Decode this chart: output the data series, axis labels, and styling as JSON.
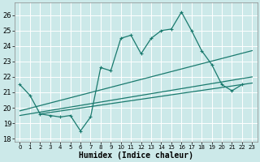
{
  "xlabel": "Humidex (Indice chaleur)",
  "background_color": "#cce9e9",
  "grid_color": "#b0d4d4",
  "line_color": "#1a7a6e",
  "xlim": [
    -0.5,
    23.5
  ],
  "ylim": [
    17.8,
    26.8
  ],
  "yticks": [
    18,
    19,
    20,
    21,
    22,
    23,
    24,
    25,
    26
  ],
  "xticks": [
    0,
    1,
    2,
    3,
    4,
    5,
    6,
    7,
    8,
    9,
    10,
    11,
    12,
    13,
    14,
    15,
    16,
    17,
    18,
    19,
    20,
    21,
    22,
    23
  ],
  "zigzag_x": [
    0,
    1,
    2,
    3,
    4,
    5,
    6,
    7,
    8,
    9,
    10,
    11,
    12,
    13,
    14,
    15,
    16,
    17,
    18,
    19,
    20,
    21,
    22
  ],
  "zigzag_y": [
    21.5,
    20.8,
    19.6,
    19.5,
    19.4,
    19.5,
    18.5,
    19.4,
    22.6,
    22.4,
    24.5,
    24.7,
    23.5,
    24.5,
    25.0,
    25.1,
    26.2,
    25.0,
    23.7,
    22.8,
    21.5,
    21.1,
    21.5
  ],
  "line_a_x0": 0,
  "line_a_y0": 19.8,
  "line_a_x1": 23,
  "line_a_y1": 23.7,
  "line_b_x0": 0,
  "line_b_y0": 19.5,
  "line_b_x1": 23,
  "line_b_y1": 22.0,
  "line_c_x0": 2,
  "line_c_y0": 19.6,
  "line_c_x1": 23,
  "line_c_y1": 21.6
}
